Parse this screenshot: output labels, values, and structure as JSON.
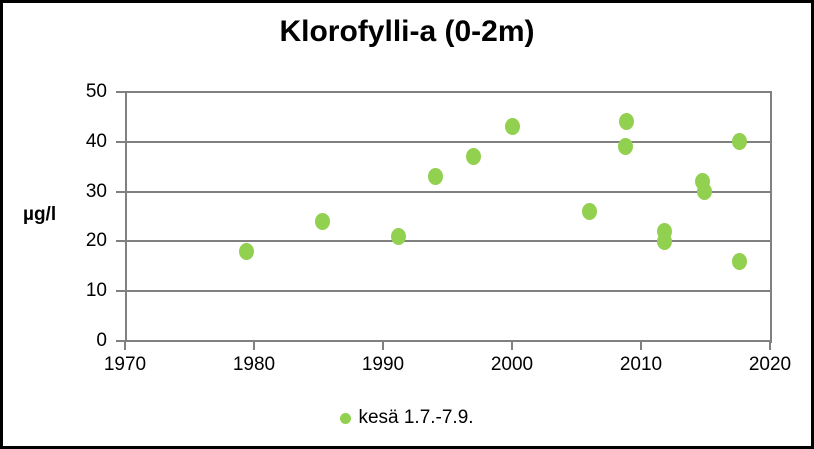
{
  "title": "Klorofylli-a (0-2m)",
  "y_axis_label": "µg/l",
  "legend": {
    "label": "kesä 1.7.-7.9."
  },
  "colors": {
    "marker": "#92D050",
    "grid": "#808080",
    "axis": "#808080",
    "text": "#000000",
    "frame_border": "#000000",
    "background": "#ffffff"
  },
  "chart_data": {
    "type": "scatter",
    "title": "Klorofylli-a (0-2m)",
    "xlabel": "",
    "ylabel": "µg/l",
    "xlim": [
      1970,
      2020
    ],
    "ylim": [
      0,
      50
    ],
    "x_ticks": [
      1970,
      1980,
      1990,
      2000,
      2010,
      2020
    ],
    "y_ticks": [
      0,
      10,
      20,
      30,
      40,
      50
    ],
    "grid": "horizontal",
    "legend_position": "bottom",
    "series": [
      {
        "name": "kesä 1.7.-7.9.",
        "points": [
          {
            "x": 1979.4,
            "y": 18
          },
          {
            "x": 1985.3,
            "y": 24
          },
          {
            "x": 1991.2,
            "y": 21
          },
          {
            "x": 1994.1,
            "y": 33
          },
          {
            "x": 1997.0,
            "y": 37
          },
          {
            "x": 2000.0,
            "y": 43
          },
          {
            "x": 2006.0,
            "y": 26
          },
          {
            "x": 2008.9,
            "y": 44
          },
          {
            "x": 2008.8,
            "y": 39
          },
          {
            "x": 2011.8,
            "y": 22
          },
          {
            "x": 2011.8,
            "y": 20
          },
          {
            "x": 2014.8,
            "y": 32
          },
          {
            "x": 2014.9,
            "y": 30
          },
          {
            "x": 2017.6,
            "y": 40
          },
          {
            "x": 2017.6,
            "y": 16
          }
        ]
      }
    ]
  }
}
